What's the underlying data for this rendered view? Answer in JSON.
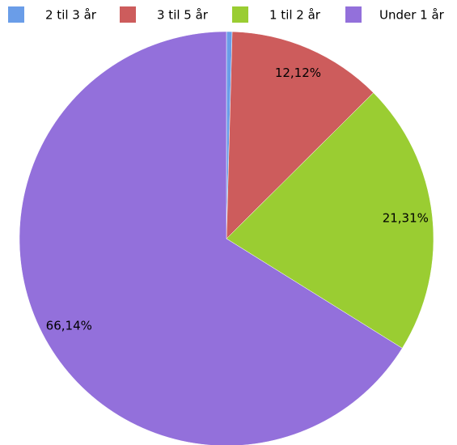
{
  "chart_data": {
    "type": "pie",
    "categories": [
      "2 til 3 år",
      "3 til 5 år",
      "1 til 2 år",
      "Under 1 år"
    ],
    "values": [
      0.44,
      12.12,
      21.31,
      66.14
    ],
    "value_labels": [
      "0,44%",
      "12,12%",
      "21,31%",
      "66,14%"
    ],
    "colors": [
      "#6a9de8",
      "#cd5c5c",
      "#9acd32",
      "#9370db"
    ],
    "legend": "top"
  }
}
